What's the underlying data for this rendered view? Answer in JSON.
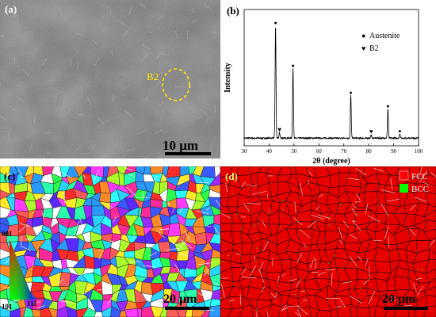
{
  "figure": {
    "panels": [
      {
        "id": "a",
        "label": "(a)",
        "kind": "SEM micrograph",
        "annotation": "B2",
        "scale_bar": "10 μm"
      },
      {
        "id": "b",
        "label": "(b)"
      },
      {
        "id": "c",
        "label": "(c)",
        "kind": "EBSD IPF map",
        "scale_bar": "20 μm",
        "ipf_key": {
          "top": "001",
          "bottom_left": "101",
          "bottom_right": "111"
        }
      },
      {
        "id": "d",
        "label": "(d)",
        "kind": "EBSD phase map",
        "scale_bar": "20 μm",
        "legend": [
          {
            "name": "FCC",
            "color": "#ff0000"
          },
          {
            "name": "BCC",
            "color": "#00ff00"
          }
        ]
      }
    ]
  },
  "chart_data": {
    "type": "line",
    "panel": "b",
    "title": "",
    "xlabel": "2θ (degree)",
    "ylabel": "Intensity",
    "xlim": [
      30,
      100
    ],
    "x_ticks": [
      30,
      40,
      50,
      60,
      70,
      80,
      90,
      100
    ],
    "legend_position": "top-right",
    "legend": [
      {
        "name": "Austenite",
        "marker": "●"
      },
      {
        "name": "B2",
        "marker": "♥"
      }
    ],
    "peaks": [
      {
        "x": 42.6,
        "height": 1.0,
        "phase": "Austenite"
      },
      {
        "x": 44.2,
        "height": 0.05,
        "phase": "B2"
      },
      {
        "x": 49.6,
        "height": 0.62,
        "phase": "Austenite"
      },
      {
        "x": 72.8,
        "height": 0.38,
        "phase": "Austenite"
      },
      {
        "x": 81.0,
        "height": 0.03,
        "phase": "B2"
      },
      {
        "x": 87.7,
        "height": 0.26,
        "phase": "Austenite"
      },
      {
        "x": 92.5,
        "height": 0.04,
        "phase": "Austenite"
      }
    ]
  }
}
